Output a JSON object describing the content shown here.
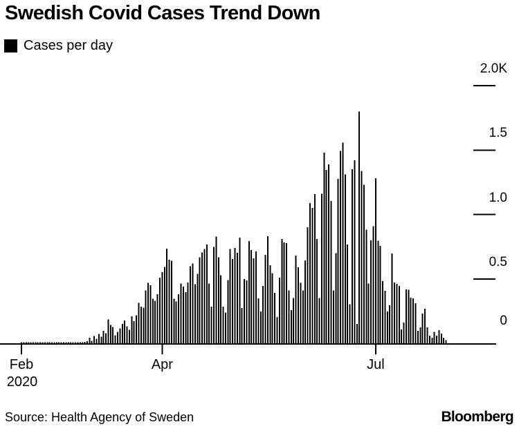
{
  "header": {
    "title": "Swedish Covid Cases Trend Down",
    "legend_label": "Cases per day"
  },
  "footer": {
    "source": "Source: Health Agency of Sweden",
    "logo": "Bloomberg"
  },
  "colors": {
    "bar": "#000000",
    "axis": "#000000",
    "text": "#000000",
    "background": "#ffffff"
  },
  "chart_data": {
    "type": "bar",
    "title": "Swedish Covid Cases Trend Down",
    "series_name": "Cases per day",
    "unit": "cases per day",
    "x_start": "2020-02-01",
    "x_end": "2020-07-31",
    "grid": false,
    "legend_position": "top-left",
    "ylim": [
      0,
      2000
    ],
    "y_ticks": [
      {
        "label": "2.0K",
        "value": 2000
      },
      {
        "label": "1.5",
        "value": 1500
      },
      {
        "label": "1.0",
        "value": 1000
      },
      {
        "label": "0.5",
        "value": 500
      },
      {
        "label": "0",
        "value": 0
      }
    ],
    "x_ticks": [
      {
        "label": "Feb",
        "sublabel": "2020",
        "day_index": 0
      },
      {
        "label": "Apr",
        "sublabel": "",
        "day_index": 60
      },
      {
        "label": "Jul",
        "sublabel": "",
        "day_index": 151
      }
    ],
    "values": [
      2,
      1,
      2,
      1,
      2,
      2,
      1,
      2,
      2,
      1,
      2,
      2,
      1,
      2,
      2,
      3,
      2,
      3,
      2,
      3,
      3,
      2,
      3,
      4,
      5,
      6,
      8,
      10,
      15,
      43,
      20,
      55,
      34,
      73,
      52,
      96,
      79,
      186,
      141,
      127,
      61,
      88,
      114,
      150,
      177,
      132,
      105,
      209,
      172,
      218,
      315,
      284,
      275,
      409,
      468,
      450,
      347,
      329,
      380,
      510,
      552,
      593,
      734,
      650,
      640,
      347,
      325,
      382,
      463,
      440,
      397,
      472,
      597,
      620,
      459,
      540,
      668,
      704,
      731,
      767,
      463,
      284,
      749,
      829,
      668,
      529,
      284,
      239,
      490,
      731,
      654,
      740,
      702,
      820,
      273,
      498,
      488,
      793,
      724,
      659,
      713,
      348,
      247,
      445,
      686,
      831,
      606,
      543,
      391,
      204,
      509,
      810,
      784,
      777,
      409,
      258,
      350,
      680,
      590,
      470,
      410,
      643,
      901,
      1088,
      1050,
      1158,
      810,
      350,
      1160,
      1479,
      1345,
      1388,
      1104,
      409,
      699,
      1276,
      1494,
      1557,
      1312,
      767,
      302,
      1350,
      1420,
      150,
      1800,
      1339,
      1231,
      883,
      463,
      800,
      910,
      1282,
      795,
      755,
      482,
      408,
      248,
      295,
      697,
      472,
      462,
      445,
      107,
      160,
      418,
      415,
      354,
      348,
      311,
      96,
      123,
      230,
      268,
      123,
      59,
      43,
      88,
      60,
      102,
      75,
      44,
      25
    ]
  }
}
